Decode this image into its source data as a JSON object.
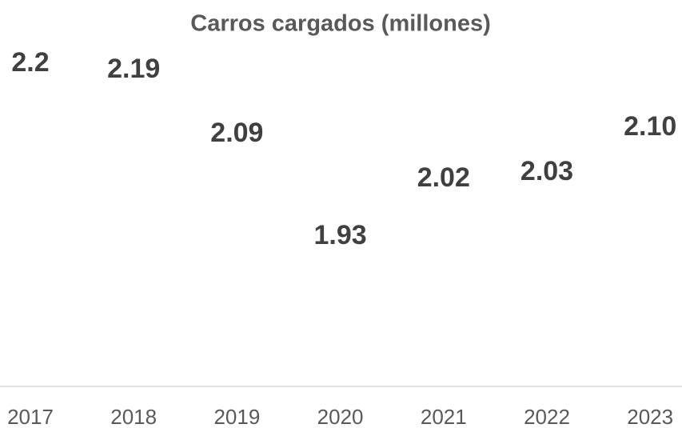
{
  "chart_data": {
    "type": "line",
    "title": "Carros cargados (millones)",
    "categories": [
      "2017",
      "2018",
      "2019",
      "2020",
      "2021",
      "2022",
      "2023"
    ],
    "values": [
      2.2,
      2.19,
      2.09,
      1.93,
      2.02,
      2.03,
      2.1
    ],
    "value_labels": [
      "2.2",
      "2.19",
      "2.09",
      "1.93",
      "2.02",
      "2.03",
      "2.10"
    ],
    "color": "#4472c4",
    "ylim": [
      1.75,
      2.3
    ]
  }
}
